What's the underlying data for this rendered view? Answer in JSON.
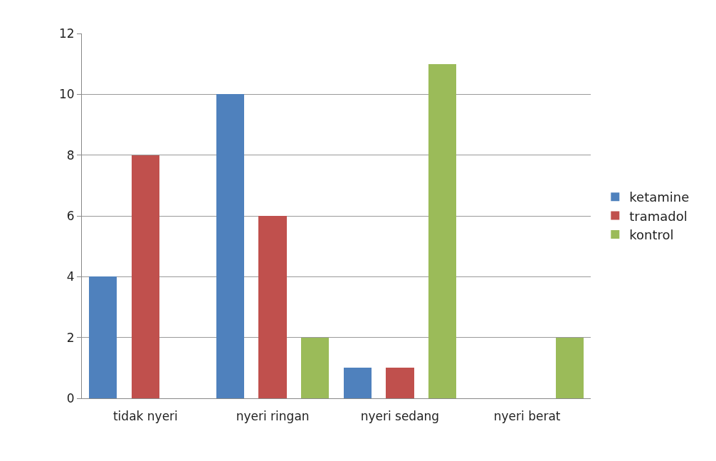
{
  "chart_data": {
    "type": "bar",
    "categories": [
      "tidak nyeri",
      "nyeri ringan",
      "nyeri sedang",
      "nyeri berat"
    ],
    "series": [
      {
        "name": "ketamine",
        "color": "#4f81bd",
        "values": [
          4,
          10,
          1,
          0
        ]
      },
      {
        "name": "tramadol",
        "color": "#c0504d",
        "values": [
          8,
          6,
          1,
          0
        ]
      },
      {
        "name": "kontrol",
        "color": "#9bbb59",
        "values": [
          0,
          2,
          11,
          2
        ]
      }
    ],
    "ylim": [
      0,
      12
    ],
    "yticks": [
      0,
      2,
      4,
      6,
      8,
      10,
      12
    ],
    "grid": "y",
    "legend": "right"
  }
}
